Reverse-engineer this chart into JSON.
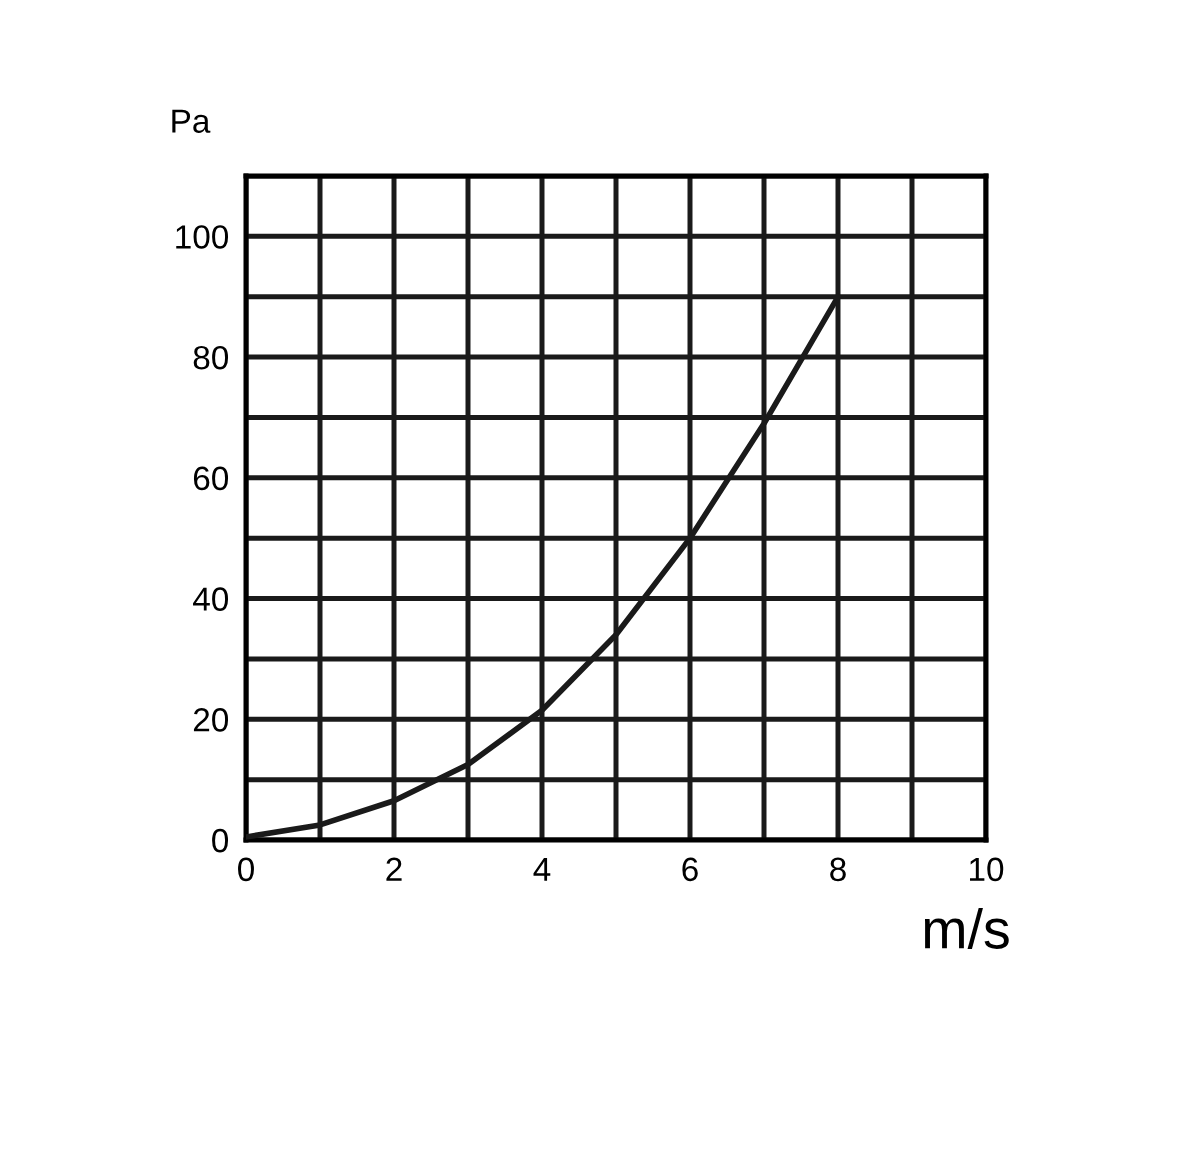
{
  "chart_data": {
    "type": "line",
    "xlabel": "m/s",
    "ylabel": "Pa",
    "x": [
      0,
      1,
      2,
      3,
      4,
      5,
      6,
      7,
      8
    ],
    "series": [
      {
        "color": "#1a1a1a",
        "values": [
          0.5,
          2.5,
          6.5,
          12.5,
          21.5,
          34,
          50,
          69,
          90
        ]
      }
    ],
    "xlim": [
      0,
      10
    ],
    "ylim": [
      0,
      110
    ],
    "xticks": [
      0,
      {
        "value": 1,
        "label": null
      },
      2,
      {
        "value": 3,
        "label": null
      },
      4,
      {
        "value": 5,
        "label": null
      },
      6,
      {
        "value": 7,
        "label": null
      },
      8,
      {
        "value": 9,
        "label": null
      },
      10
    ],
    "yticks": [
      0,
      {
        "value": 10,
        "label": null
      },
      20,
      {
        "value": 30,
        "label": null
      },
      40,
      {
        "value": 50,
        "label": null
      },
      60,
      {
        "value": 70,
        "label": null
      },
      80,
      {
        "value": 90,
        "label": null
      },
      100,
      {
        "value": 110,
        "label": null
      }
    ],
    "grid": true,
    "legend": false,
    "marker": "none",
    "line_style": "solid"
  }
}
